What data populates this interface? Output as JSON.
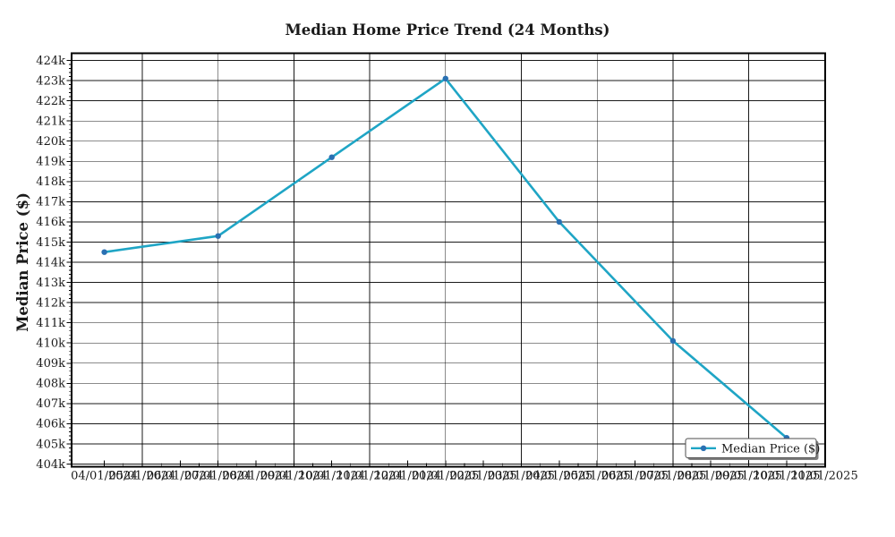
{
  "chart_data": {
    "type": "line",
    "title": "Median Home Price Trend (24 Months)",
    "xlabel": "",
    "ylabel": "Median Price ($)",
    "legend": [
      "Median Price ($)"
    ],
    "legend_position": "lower right",
    "grid": true,
    "ylim": [
      404000,
      424000
    ],
    "y_tick_step": 1000,
    "y_tick_labels": [
      "404k",
      "405k",
      "406k",
      "407k",
      "408k",
      "409k",
      "410k",
      "411k",
      "412k",
      "413k",
      "414k",
      "415k",
      "416k",
      "417k",
      "418k",
      "419k",
      "420k",
      "421k",
      "422k",
      "423k",
      "424k"
    ],
    "x_tick_labels": [
      "04/01/2024",
      "05/01/2024",
      "06/01/2024",
      "07/01/2024",
      "08/01/2024",
      "09/01/2024",
      "10/01/2024",
      "11/01/2024",
      "12/01/2024",
      "01/01/2025",
      "02/01/2025",
      "03/01/2025",
      "04/01/2025",
      "05/01/2025",
      "06/01/2025",
      "07/01/2025",
      "08/01/2025",
      "09/01/2025",
      "10/01/2025",
      "11/01/2025"
    ],
    "series": [
      {
        "name": "Median Price ($)",
        "x": [
          "04/01/2024",
          "07/01/2024",
          "10/01/2024",
          "01/01/2025",
          "04/01/2025",
          "07/01/2025",
          "10/01/2025"
        ],
        "x_month_index": [
          0,
          3,
          6,
          9,
          12,
          15,
          18
        ],
        "values": [
          414500,
          415300,
          419200,
          423100,
          416000,
          410100,
          405300
        ]
      }
    ],
    "colors": {
      "line": "#1fa5c5",
      "marker": "#2a70b2",
      "grid": "#000000",
      "text": "#1a1a1a",
      "legend_border": "#4d4d4d",
      "legend_shadow": "#808080",
      "background": "#ffffff"
    }
  }
}
